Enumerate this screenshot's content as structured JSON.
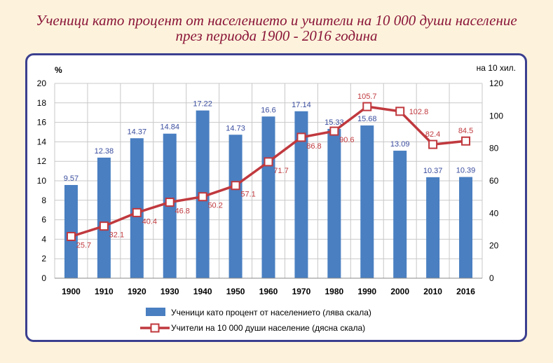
{
  "title": {
    "line1": "Ученици като процент от населението и учители на 10 000 души население",
    "line2": "през периода 1900 - 2016 година"
  },
  "colors": {
    "bar": "#4a7fc1",
    "line": "#c0393e",
    "bar_label": "#3a4d9e",
    "line_label": "#c0393e",
    "title": "#8a1538",
    "frame": "#3b3f8f",
    "background": "#fdf3dc"
  },
  "chart_data": {
    "type": "bar",
    "categories": [
      "1900",
      "1910",
      "1920",
      "1930",
      "1940",
      "1950",
      "1960",
      "1970",
      "1980",
      "1990",
      "2000",
      "2010",
      "2016"
    ],
    "left_axis_unit": "%",
    "right_axis_unit": "на 10 хил.",
    "ylim_left": [
      0,
      20
    ],
    "ylim_right": [
      0,
      120
    ],
    "yticks_left": [
      "0",
      "2",
      "4",
      "6",
      "8",
      "10",
      "12",
      "14",
      "16",
      "18",
      "20"
    ],
    "yticks_right": [
      "0",
      "20",
      "40",
      "60",
      "80",
      "100",
      "120"
    ],
    "grid": true,
    "legend_position": "bottom",
    "series": [
      {
        "name": "Ученици като процент от населението (лява скала)",
        "type": "bar",
        "axis": "left",
        "values": [
          9.57,
          12.38,
          14.37,
          14.84,
          17.22,
          14.73,
          16.6,
          17.14,
          15.33,
          15.68,
          13.09,
          10.37,
          10.39
        ],
        "labels": [
          "9.57",
          "12.38",
          "14.37",
          "14.84",
          "17.22",
          "14.73",
          "16.6",
          "17.14",
          "15.33",
          "15.68",
          "13.09",
          "10.37",
          "10.39"
        ]
      },
      {
        "name": "Учители на 10 000 души население (дясна скала)",
        "type": "line",
        "axis": "right",
        "values": [
          25.7,
          32.1,
          40.4,
          46.8,
          50.2,
          57.1,
          71.7,
          86.8,
          90.6,
          105.7,
          102.8,
          82.4,
          84.5
        ],
        "labels": [
          "25.7",
          "32.1",
          "40.4",
          "46.8",
          "50.2",
          "57.1",
          "71.7",
          "86.8",
          "90.6",
          "105.7",
          "102.8",
          "82.4",
          "84.5"
        ]
      }
    ]
  }
}
